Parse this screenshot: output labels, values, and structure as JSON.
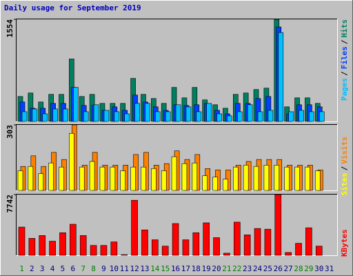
{
  "chart_data": {
    "type": "bar",
    "title": "Daily usage for September 2019",
    "legend_separator": "/",
    "categories": [
      "1",
      "2",
      "3",
      "4",
      "5",
      "6",
      "7",
      "8",
      "9",
      "10",
      "11",
      "12",
      "13",
      "14",
      "15",
      "16",
      "17",
      "18",
      "19",
      "20",
      "21",
      "22",
      "23",
      "24",
      "25",
      "26",
      "27",
      "28",
      "29",
      "30",
      "31"
    ],
    "category_colors": [
      "#008000",
      "#000080",
      "#000080",
      "#000080",
      "#000080",
      "#000080",
      "#008000",
      "#008000",
      "#000080",
      "#000080",
      "#000080",
      "#000080",
      "#000080",
      "#008000",
      "#008000",
      "#000080",
      "#000080",
      "#000080",
      "#000080",
      "#000080",
      "#008000",
      "#008000",
      "#000080",
      "#000080",
      "#000080",
      "#000080",
      "#000080",
      "#008000",
      "#008000",
      "#000080",
      "#000080"
    ],
    "panels": [
      {
        "ylim": [
          0,
          1554
        ],
        "yticks": [
          1554
        ],
        "series": [
          {
            "name": "Hits",
            "color": "#008060",
            "values": [
              380,
              433,
              296,
              412,
              412,
              951,
              380,
              412,
              275,
              275,
              275,
              655,
              412,
              349,
              275,
              518,
              359,
              518,
              328,
              254,
              201,
              412,
              433,
              486,
              507,
              1554,
              222,
              359,
              359,
              275,
              0
            ]
          },
          {
            "name": "Files",
            "color": "#0040ff",
            "values": [
              296,
              201,
              201,
              275,
              275,
              518,
              243,
              243,
              169,
              222,
              169,
              402,
              296,
              222,
              169,
              254,
              243,
              254,
              275,
              169,
              116,
              275,
              275,
              349,
              380,
              1438,
              116,
              254,
              254,
              222,
              0
            ]
          },
          {
            "name": "Pages",
            "color": "#00c0ff",
            "values": [
              148,
              190,
              116,
              190,
              190,
              518,
              148,
              254,
              169,
              148,
              116,
              275,
              275,
              148,
              148,
              254,
              222,
              148,
              275,
              116,
              85,
              148,
              254,
              148,
              169,
              1353,
              148,
              169,
              148,
              148,
              0
            ]
          }
        ]
      },
      {
        "ylim": [
          0,
          303
        ],
        "yticks": [
          303
        ],
        "series": [
          {
            "name": "Visits",
            "color": "#ff8000",
            "values": [
              111,
              160,
              111,
              176,
              143,
              303,
              117,
              176,
              117,
              117,
              117,
              166,
              176,
              117,
              124,
              183,
              143,
              166,
              101,
              95,
              95,
              117,
              134,
              143,
              143,
              143,
              117,
              117,
              117,
              95,
              0
            ]
          },
          {
            "name": "Sites",
            "color": "#ffff00",
            "values": [
              91,
              111,
              78,
              127,
              108,
              264,
              108,
              134,
              108,
              108,
              91,
              108,
              108,
              101,
              91,
              156,
              124,
              127,
              68,
              62,
              52,
              108,
              117,
              111,
              117,
              117,
              108,
              108,
              108,
              91,
              0
            ]
          }
        ]
      },
      {
        "ylim": [
          0,
          7742
        ],
        "yticks": [
          7742
        ],
        "series": [
          {
            "name": "KBytes",
            "color": "#ff0000",
            "values": [
              3600,
              2160,
              2520,
              1800,
              2880,
              3960,
              2520,
              1260,
              1260,
              1710,
              90,
              7020,
              3240,
              1980,
              1170,
              4050,
              1980,
              2880,
              4140,
              2250,
              270,
              4230,
              2610,
              3420,
              3330,
              7742,
              360,
              1530,
              3510,
              1170,
              0
            ]
          }
        ]
      }
    ]
  }
}
